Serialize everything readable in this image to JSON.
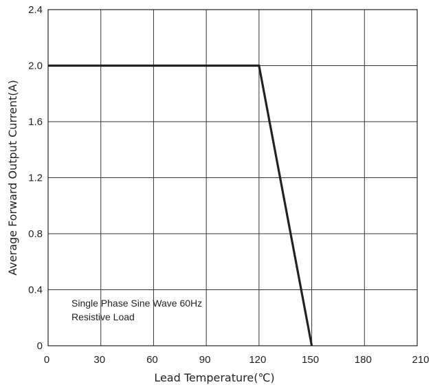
{
  "chart_data": {
    "type": "line",
    "title": "",
    "xlabel": "Lead Temperature(℃)",
    "ylabel": "Average Forward Output Current(A)",
    "xlim": [
      0,
      210
    ],
    "ylim": [
      0,
      2.4
    ],
    "x_ticks": [
      "0",
      "30",
      "60",
      "90",
      "120",
      "150",
      "180",
      "210"
    ],
    "y_ticks": [
      "0",
      "0.4",
      "0.8",
      "1.2",
      "1.6",
      "2.0",
      "2.4"
    ],
    "grid": true,
    "series": [
      {
        "x": [
          0,
          120,
          150
        ],
        "y": [
          2.0,
          2.0,
          0
        ]
      }
    ],
    "annotations": [
      "Single Phase  Sine Wave 60Hz",
      "Resistive Load"
    ]
  }
}
